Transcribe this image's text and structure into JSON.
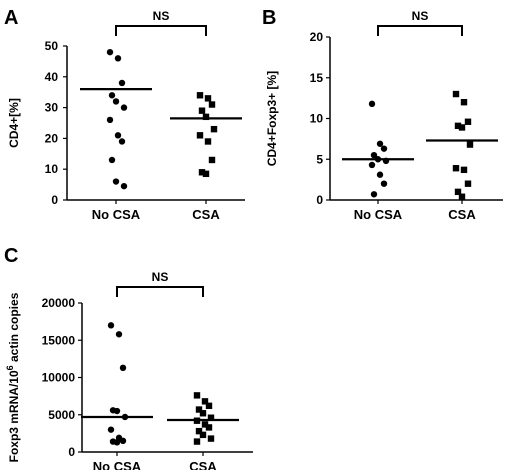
{
  "chart_data": [
    {
      "panel": "A",
      "type": "scatter",
      "ylabel": "CD4+[%]",
      "categories": [
        "No CSA",
        "CSA"
      ],
      "ylim": [
        0,
        50
      ],
      "yticks": [
        0,
        10,
        20,
        30,
        40,
        50
      ],
      "significance": "NS",
      "series": [
        {
          "category": "No CSA",
          "marker": "circle",
          "values": [
            48,
            46,
            38,
            34,
            32,
            30,
            26,
            21,
            19,
            13,
            6,
            4.5
          ],
          "mean": 36
        },
        {
          "category": "CSA",
          "marker": "square",
          "values": [
            34,
            33,
            31,
            29,
            27,
            23,
            21,
            19,
            13,
            9,
            8.5
          ],
          "mean": 26.5
        }
      ]
    },
    {
      "panel": "B",
      "type": "scatter",
      "ylabel": "CD4+Foxp3+ [%]",
      "categories": [
        "No CSA",
        "CSA"
      ],
      "ylim": [
        0,
        20
      ],
      "yticks": [
        0,
        5,
        10,
        15,
        20
      ],
      "significance": "NS",
      "series": [
        {
          "category": "No CSA",
          "marker": "circle",
          "values": [
            11.8,
            6.9,
            6.3,
            5.5,
            5.0,
            4.8,
            4.3,
            3.1,
            2.0,
            0.7
          ],
          "mean": 5.0
        },
        {
          "category": "CSA",
          "marker": "square",
          "values": [
            13.0,
            12.0,
            9.6,
            9.1,
            8.9,
            6.8,
            3.9,
            3.7,
            2.0,
            1.0,
            0.4
          ],
          "mean": 7.3
        }
      ]
    },
    {
      "panel": "C",
      "type": "scatter",
      "ylabel": "Foxp3 mRNA/10⁶ actin copies",
      "categories": [
        "No CSA",
        "CSA"
      ],
      "ylim": [
        0,
        20000
      ],
      "yticks": [
        0,
        5000,
        10000,
        15000,
        20000
      ],
      "significance": "NS",
      "series": [
        {
          "category": "No CSA",
          "marker": "circle",
          "values": [
            17000,
            15800,
            11300,
            5600,
            5500,
            4700,
            3000,
            1900,
            1500,
            1400,
            1300
          ],
          "mean": 4700
        },
        {
          "category": "CSA",
          "marker": "square",
          "values": [
            7600,
            6800,
            6200,
            5700,
            5200,
            4600,
            4200,
            3700,
            3300,
            2800,
            2300,
            1800,
            1400
          ],
          "mean": 4300
        }
      ]
    }
  ]
}
